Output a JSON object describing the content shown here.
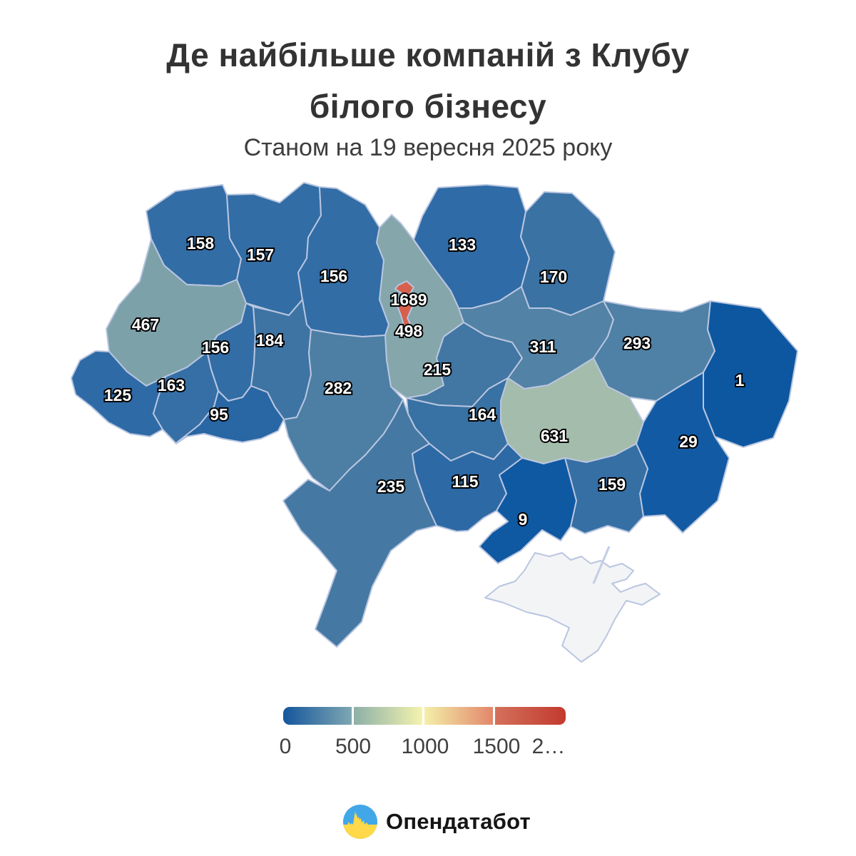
{
  "title": {
    "line1": "Де найбільше компаній з Клубу",
    "line2": "білого бізнесу",
    "subtitle": "Станом на 19 вересня 2025 року"
  },
  "legend": {
    "ticks": [
      "0",
      "500",
      "1000",
      "1500",
      "2…"
    ],
    "min": 0,
    "max": 2000,
    "gradient_segments": [
      {
        "from": "#14559d",
        "to": "#7ea7b1"
      },
      {
        "from": "#8db0a8",
        "to": "#f4f3ae"
      },
      {
        "from": "#f4efa9",
        "to": "#e2876a"
      },
      {
        "from": "#d4705b",
        "to": "#c23a2f"
      }
    ]
  },
  "footer": {
    "brand": "Опендатабот"
  },
  "chart_data": {
    "type": "choropleth",
    "title": "Де найбільше компаній з Клубу білого бізнесу",
    "subtitle": "Станом на 19 вересня 2025 року",
    "colorscale": {
      "style": "blue-yellow-red (RdYlBu reversed)",
      "min": 0,
      "max": 2000,
      "tick_labels": [
        "0",
        "500",
        "1000",
        "1500",
        "2…"
      ],
      "legend_position": "bottom"
    },
    "regions": [
      {
        "id": "volyn",
        "value": 158,
        "label": "158",
        "color": "#336da6"
      },
      {
        "id": "rivne",
        "value": 157,
        "label": "157",
        "color": "#326da5"
      },
      {
        "id": "zhytomyr",
        "value": 156,
        "label": "156",
        "color": "#326da6"
      },
      {
        "id": "chernihiv",
        "value": 133,
        "label": "133",
        "color": "#2f6ba6"
      },
      {
        "id": "sumy",
        "value": 170,
        "label": "170",
        "color": "#3a72a4"
      },
      {
        "id": "lviv",
        "value": 467,
        "label": "467",
        "color": "#7da1a9"
      },
      {
        "id": "kyiv-oblast",
        "value": 498,
        "label": "498",
        "color": "#85a6aa"
      },
      {
        "id": "ternopil",
        "value": 156,
        "label": "156",
        "color": "#326da6"
      },
      {
        "id": "khmelnytskyi",
        "value": 184,
        "label": "184",
        "color": "#3d74a4"
      },
      {
        "id": "poltava",
        "value": 311,
        "label": "311",
        "color": "#5282a5"
      },
      {
        "id": "kharkiv",
        "value": 293,
        "label": "293",
        "color": "#4f80a5"
      },
      {
        "id": "zakarpattia",
        "value": 125,
        "label": "125",
        "color": "#2e6aa6"
      },
      {
        "id": "ivano-frankivsk",
        "value": 163,
        "label": "163",
        "color": "#356fa6"
      },
      {
        "id": "chernivtsi",
        "value": 95,
        "label": "95",
        "color": "#2866a4"
      },
      {
        "id": "vinnytsia",
        "value": 282,
        "label": "282",
        "color": "#4d7ea4"
      },
      {
        "id": "cherkasy",
        "value": 215,
        "label": "215",
        "color": "#4276a3"
      },
      {
        "id": "kirovohrad",
        "value": 164,
        "label": "164",
        "color": "#3871a3"
      },
      {
        "id": "dnipropetrovsk",
        "value": 631,
        "label": "631",
        "color": "#a4bcab"
      },
      {
        "id": "luhansk",
        "value": 1,
        "label": "1",
        "color": "#0d57a1"
      },
      {
        "id": "donetsk",
        "value": 29,
        "label": "29",
        "color": "#125ba4"
      },
      {
        "id": "odesa",
        "value": 235,
        "label": "235",
        "color": "#4579a3"
      },
      {
        "id": "mykolaiv",
        "value": 115,
        "label": "115",
        "color": "#2d69a5"
      },
      {
        "id": "zaporizhzhia",
        "value": 159,
        "label": "159",
        "color": "#356fa4"
      },
      {
        "id": "kherson",
        "value": 9,
        "label": "9",
        "color": "#0f58a2"
      },
      {
        "id": "crimea",
        "value": null,
        "label": "",
        "color": "#f3f4f6"
      },
      {
        "id": "kyiv-city",
        "value": 1689,
        "label": "1689",
        "color": "#d6604d"
      }
    ]
  }
}
